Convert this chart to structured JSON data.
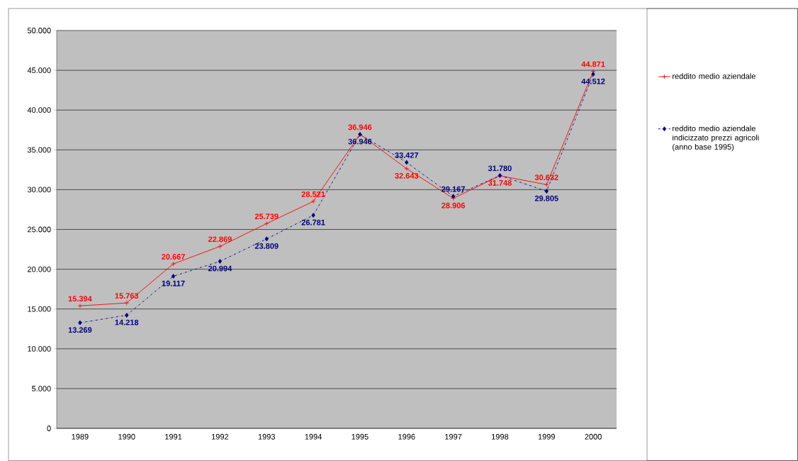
{
  "chart_data": {
    "type": "line",
    "categories": [
      "1989",
      "1990",
      "1991",
      "1992",
      "1993",
      "1994",
      "1995",
      "1996",
      "1997",
      "1998",
      "1999",
      "2000"
    ],
    "series": [
      {
        "name": "reddito medio aziendale",
        "color": "#ff0000",
        "marker": "cross",
        "line_style": "solid",
        "values": [
          15394,
          15763,
          20667,
          22869,
          25739,
          28521,
          36946,
          32643,
          28906,
          31748,
          30632,
          44871
        ],
        "value_labels": [
          "15.394",
          "15.763",
          "20.667",
          "22.869",
          "25.739",
          "28.521",
          "36.946",
          "32.643",
          "28.906",
          "31.748",
          "30.632",
          "44.871"
        ]
      },
      {
        "name": "reddito medio aziendale indicizzato prezzi agricoli (anno base 1995)",
        "color": "#000080",
        "marker": "diamond",
        "line_style": "dashed",
        "values": [
          13269,
          14218,
          19117,
          20994,
          23809,
          26781,
          36946,
          33427,
          29167,
          31780,
          29805,
          44512
        ],
        "value_labels": [
          "13.269",
          "14.218",
          "19.117",
          "20.994",
          "23.809",
          "26.781",
          "36.946",
          "33.427",
          "29.167",
          "31.780",
          "29.805",
          "44.512"
        ]
      }
    ],
    "ylim": [
      0,
      50000
    ],
    "yticks": [
      {
        "value": 0,
        "label": "0"
      },
      {
        "value": 5000,
        "label": "5.000"
      },
      {
        "value": 10000,
        "label": "10.000"
      },
      {
        "value": 15000,
        "label": "15.000"
      },
      {
        "value": 20000,
        "label": "20.000"
      },
      {
        "value": 25000,
        "label": "25.000"
      },
      {
        "value": 30000,
        "label": "30.000"
      },
      {
        "value": 35000,
        "label": "35.000"
      },
      {
        "value": 40000,
        "label": "40.000"
      },
      {
        "value": 45000,
        "label": "45.000"
      },
      {
        "value": 50000,
        "label": "50.000"
      }
    ],
    "grid": "y",
    "legend": "right"
  }
}
